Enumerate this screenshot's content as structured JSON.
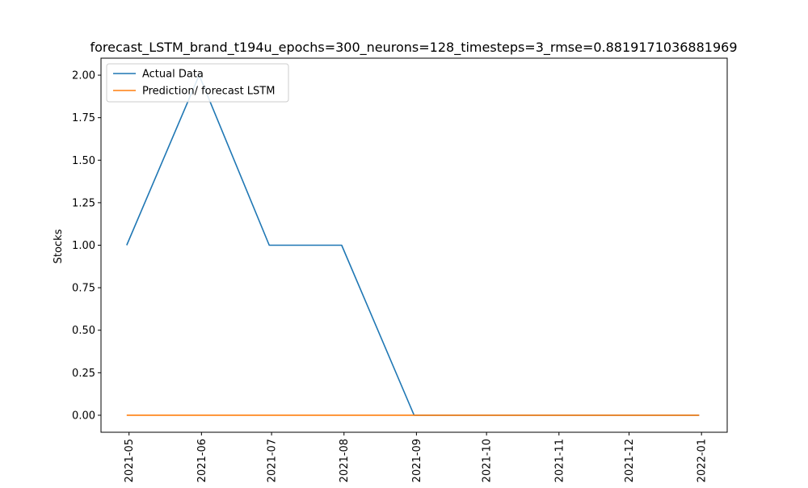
{
  "chart_data": {
    "type": "line",
    "title": "forecast_LSTM_brand_t194u_epochs=300_neurons=128_timesteps=3_rmse=0.8819171036881969",
    "xlabel": "",
    "ylabel": "Stocks",
    "x": [
      "2021-04-30",
      "2021-05-31",
      "2021-06-30",
      "2021-07-31",
      "2021-08-31",
      "2021-09-30",
      "2021-10-31",
      "2021-11-30",
      "2021-12-31"
    ],
    "xticks": [
      "2021-05",
      "2021-06",
      "2021-07",
      "2021-08",
      "2021-09",
      "2021-10",
      "2021-11",
      "2021-12",
      "2022-01"
    ],
    "xtick_dates": [
      "2021-05-01",
      "2021-06-01",
      "2021-07-01",
      "2021-08-01",
      "2021-09-01",
      "2021-10-01",
      "2021-11-01",
      "2021-12-01",
      "2022-01-01"
    ],
    "xlim": [
      "2021-04-19",
      "2022-01-12"
    ],
    "ylim": [
      -0.1,
      2.1
    ],
    "yticks": [
      0.0,
      0.25,
      0.5,
      0.75,
      1.0,
      1.25,
      1.5,
      1.75,
      2.0
    ],
    "ytick_labels": [
      "0.00",
      "0.25",
      "0.50",
      "0.75",
      "1.00",
      "1.25",
      "1.50",
      "1.75",
      "2.00"
    ],
    "grid": false,
    "legend_position": "top-left",
    "series": [
      {
        "name": "Actual Data",
        "color": "#1f77b4",
        "values": [
          1,
          2,
          1,
          1,
          0,
          0,
          0,
          0,
          0
        ]
      },
      {
        "name": "Prediction/ forecast LSTM",
        "color": "#ff7f0e",
        "values": [
          0,
          0,
          0,
          0,
          0,
          0,
          0,
          0,
          0
        ]
      }
    ]
  }
}
